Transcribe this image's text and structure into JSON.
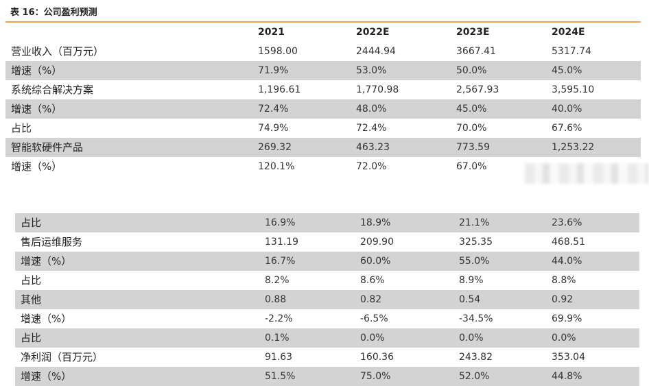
{
  "caption": "表 16：公司盈利预测",
  "columns": [
    "2021",
    "2022E",
    "2023E",
    "2024E"
  ],
  "table1": [
    {
      "label": "营业收入（百万元）",
      "values": [
        "1598.00",
        "2444.94",
        "3667.41",
        "5317.74"
      ]
    },
    {
      "label": "增速（%）",
      "values": [
        "71.9%",
        "53.0%",
        "50.0%",
        "45.0%"
      ]
    },
    {
      "label": "系统综合解决方案",
      "values": [
        "1,196.61",
        "1,770.98",
        "2,567.93",
        "3,595.10"
      ]
    },
    {
      "label": "增速（%）",
      "values": [
        "72.4%",
        "48.0%",
        "45.0%",
        "40.0%"
      ]
    },
    {
      "label": "占比",
      "values": [
        "74.9%",
        "72.4%",
        "70.0%",
        "67.6%"
      ]
    },
    {
      "label": "智能软硬件产品",
      "values": [
        "269.32",
        "463.23",
        "773.59",
        "1,253.22"
      ]
    },
    {
      "label": "增速（%）",
      "values": [
        "120.1%",
        "72.0%",
        "67.0%",
        ""
      ]
    }
  ],
  "table2": [
    {
      "label": "占比",
      "values": [
        "16.9%",
        "18.9%",
        "21.1%",
        "23.6%"
      ]
    },
    {
      "label": "售后运维服务",
      "values": [
        "131.19",
        "209.90",
        "325.35",
        "468.51"
      ]
    },
    {
      "label": "增速（%）",
      "values": [
        "16.7%",
        "60.0%",
        "55.0%",
        "44.0%"
      ]
    },
    {
      "label": "占比",
      "values": [
        "8.2%",
        "8.6%",
        "8.9%",
        "8.8%"
      ]
    },
    {
      "label": "其他",
      "values": [
        "0.88",
        "0.82",
        "0.54",
        "0.92"
      ]
    },
    {
      "label": "增速（%）",
      "values": [
        "-2.2%",
        "-6.5%",
        "-34.5%",
        "69.9%"
      ]
    },
    {
      "label": "占比",
      "values": [
        "0.1%",
        "0.0%",
        "0.0%",
        "0.0%"
      ]
    },
    {
      "label": "净利润（百万元）",
      "values": [
        "91.63",
        "160.36",
        "243.82",
        "353.04"
      ]
    },
    {
      "label": "增速（%）",
      "values": [
        "51.5%",
        "75.0%",
        "52.0%",
        "44.8%"
      ]
    }
  ]
}
